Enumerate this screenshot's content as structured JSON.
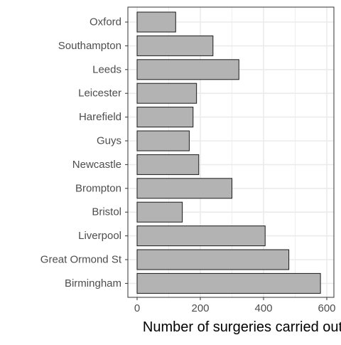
{
  "chart_data": {
    "type": "bar",
    "orientation": "horizontal",
    "categories": [
      "Oxford",
      "Southampton",
      "Leeds",
      "Leicester",
      "Harefield",
      "Guys",
      "Newcastle",
      "Brompton",
      "Bristol",
      "Liverpool",
      "Great Ormond St",
      "Birmingham"
    ],
    "values": [
      122,
      240,
      322,
      188,
      177,
      165,
      195,
      300,
      143,
      405,
      480,
      580
    ],
    "title": "",
    "xlabel": "Number of surgeries carried out",
    "ylabel": "",
    "xlim": [
      0,
      600
    ],
    "x_ticks": [
      "0",
      "200",
      "400",
      "600"
    ],
    "grid": true,
    "legend": "none",
    "colors": {
      "bar_fill": "#b3b3b3",
      "bar_stroke": "#1a1a1a",
      "grid": "#ebebeb",
      "panel_border": "#333333",
      "text": "#4d4d4d",
      "title_text": "#000000"
    }
  }
}
